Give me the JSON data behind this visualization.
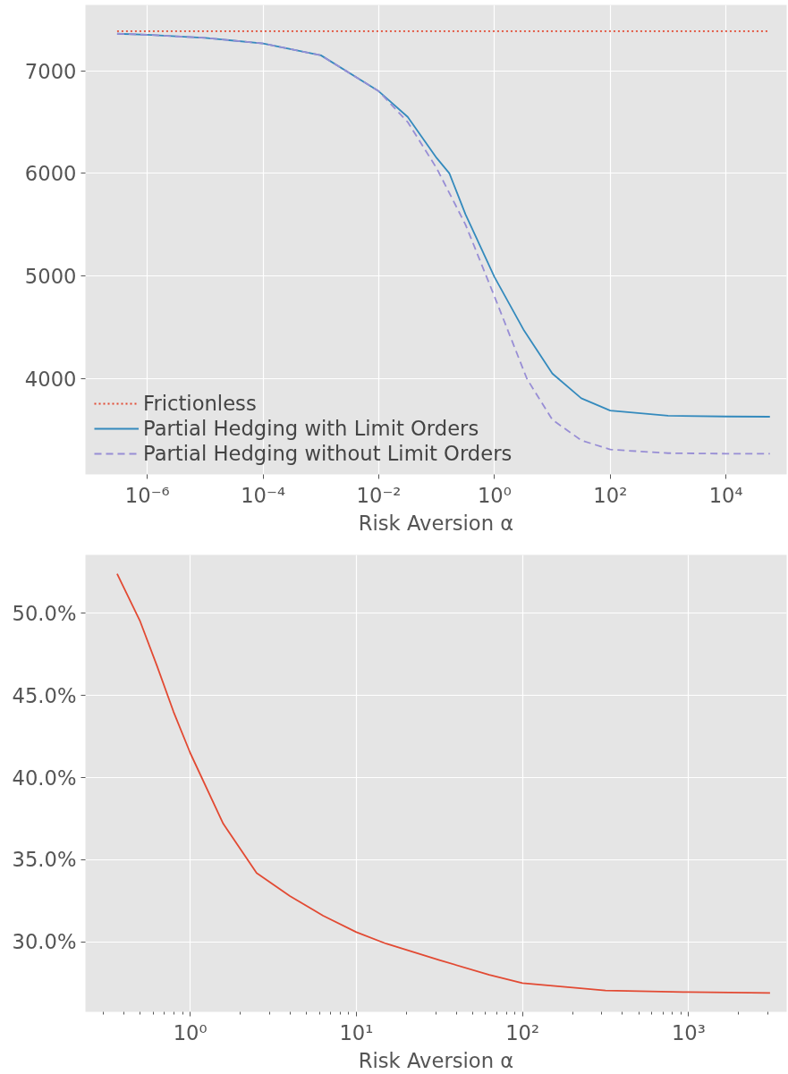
{
  "chart_data": [
    {
      "type": "line",
      "xlabel": "Risk Aversion α",
      "log": "x",
      "grid": true,
      "legend": "bottom left",
      "xlim": [
        8.5e-08,
        112000.0
      ],
      "ylim": [
        3068,
        7641
      ],
      "xticks": [
        {
          "value": 1e-06,
          "label": "10⁻⁶"
        },
        {
          "value": 0.0001,
          "label": "10⁻⁴"
        },
        {
          "value": 0.01,
          "label": "10⁻²"
        },
        {
          "value": 1,
          "label": "10⁰"
        },
        {
          "value": 100,
          "label": "10²"
        },
        {
          "value": 10000,
          "label": "10⁴"
        }
      ],
      "yticks": [
        4000,
        5000,
        6000,
        7000
      ],
      "series": [
        {
          "name": "Frictionless",
          "color": "#e24a33",
          "line_style": "dotted",
          "x": [
            3e-07,
            57500.0
          ],
          "values": [
            7385,
            7385
          ]
        },
        {
          "name": "Partial Hedging with Limit Orders",
          "color": "#348abd",
          "line_style": "solid",
          "x": [
            3e-07,
            1e-06,
            1e-05,
            0.0001,
            0.001,
            0.01,
            0.0316,
            0.1,
            0.166,
            0.316,
            1,
            3.16,
            10,
            31.6,
            100,
            1000,
            10000,
            57500.0
          ],
          "values": [
            7360,
            7350,
            7320,
            7265,
            7150,
            6800,
            6550,
            6150,
            6000,
            5600,
            4990,
            4480,
            4050,
            3810,
            3690,
            3640,
            3632,
            3630
          ]
        },
        {
          "name": "Partial Hedging without Limit Orders",
          "color": "#988ed5",
          "line_style": "dashed",
          "x": [
            3e-07,
            1e-06,
            1e-05,
            0.0001,
            0.001,
            0.01,
            0.0316,
            0.1,
            0.316,
            1,
            3.63,
            10,
            31.6,
            100,
            1000,
            10000,
            57500.0
          ],
          "values": [
            7360,
            7350,
            7320,
            7265,
            7150,
            6800,
            6500,
            6050,
            5500,
            4800,
            4000,
            3600,
            3400,
            3310,
            3275,
            3270,
            3270
          ]
        }
      ]
    },
    {
      "type": "line",
      "xlabel": "Risk Aversion α",
      "log": "x",
      "grid": true,
      "xlim": [
        0.234,
        3890
      ],
      "ylim": [
        25.75,
        53.55
      ],
      "xticks": [
        {
          "value": 0.3,
          "label": null
        },
        {
          "value": 0.4,
          "label": null
        },
        {
          "value": 0.5,
          "label": null
        },
        {
          "value": 0.6,
          "label": null
        },
        {
          "value": 0.7,
          "label": null
        },
        {
          "value": 0.8,
          "label": null
        },
        {
          "value": 0.9,
          "label": null
        },
        {
          "value": 1,
          "label": "10⁰"
        },
        {
          "value": 2,
          "label": null
        },
        {
          "value": 3,
          "label": null
        },
        {
          "value": 4,
          "label": null
        },
        {
          "value": 5,
          "label": null
        },
        {
          "value": 6,
          "label": null
        },
        {
          "value": 7,
          "label": null
        },
        {
          "value": 8,
          "label": null
        },
        {
          "value": 9,
          "label": null
        },
        {
          "value": 10,
          "label": "10¹"
        },
        {
          "value": 20,
          "label": null
        },
        {
          "value": 30,
          "label": null
        },
        {
          "value": 40,
          "label": null
        },
        {
          "value": 50,
          "label": null
        },
        {
          "value": 60,
          "label": null
        },
        {
          "value": 70,
          "label": null
        },
        {
          "value": 80,
          "label": null
        },
        {
          "value": 90,
          "label": null
        },
        {
          "value": 100,
          "label": "10²"
        },
        {
          "value": 200,
          "label": null
        },
        {
          "value": 300,
          "label": null
        },
        {
          "value": 400,
          "label": null
        },
        {
          "value": 500,
          "label": null
        },
        {
          "value": 600,
          "label": null
        },
        {
          "value": 700,
          "label": null
        },
        {
          "value": 800,
          "label": null
        },
        {
          "value": 900,
          "label": null
        },
        {
          "value": 1000,
          "label": "10³"
        },
        {
          "value": 2000,
          "label": null
        },
        {
          "value": 3000,
          "label": null
        }
      ],
      "yticks": [
        {
          "value": 30,
          "label": "30.0%"
        },
        {
          "value": 35,
          "label": "35.0%"
        },
        {
          "value": 40,
          "label": "40.0%"
        },
        {
          "value": 45,
          "label": "45.0%"
        },
        {
          "value": 50,
          "label": "50.0%"
        }
      ],
      "series": [
        {
          "color": "#e24a33",
          "line_style": "solid",
          "x": [
            0.363,
            0.5,
            0.631,
            0.794,
            1,
            1.58,
            2.51,
            3.98,
            6.31,
            10,
            15.1,
            31.6,
            63.1,
            100,
            316,
            1000,
            3090
          ],
          "values": [
            52.4,
            49.5,
            46.8,
            44.0,
            41.5,
            37.2,
            34.2,
            32.8,
            31.6,
            30.6,
            29.9,
            28.9,
            28.0,
            27.5,
            27.05,
            26.95,
            26.9
          ]
        }
      ]
    }
  ]
}
